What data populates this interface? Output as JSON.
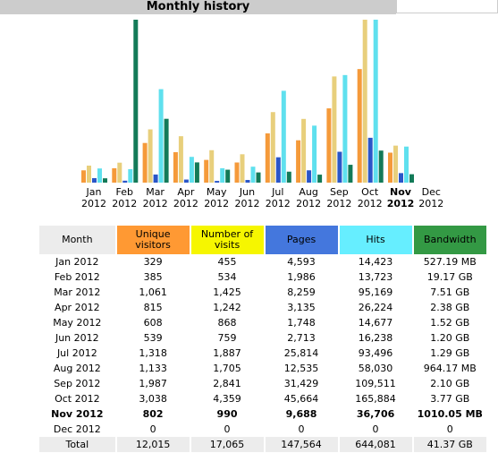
{
  "header": {
    "title": "Monthly history"
  },
  "chart_data": {
    "type": "bar",
    "categories": [
      "Jan 2012",
      "Feb 2012",
      "Mar 2012",
      "Apr 2012",
      "May 2012",
      "Jun 2012",
      "Jul 2012",
      "Aug 2012",
      "Sep 2012",
      "Oct 2012",
      "Nov 2012",
      "Dec 2012"
    ],
    "bold_index": 10,
    "series": [
      {
        "color": "#f59a3a",
        "ylim": [
          0,
          4359
        ],
        "values": [
          329,
          385,
          1061,
          815,
          608,
          539,
          1318,
          1133,
          1987,
          3038,
          802,
          0
        ]
      },
      {
        "color": "#e8cf7c",
        "ylim": [
          0,
          4359
        ],
        "values": [
          455,
          534,
          1425,
          1242,
          868,
          759,
          1887,
          1705,
          2841,
          4359,
          990,
          0
        ]
      },
      {
        "color": "#2a56c8",
        "ylim": [
          0,
          165884
        ],
        "values": [
          4593,
          1986,
          8259,
          3135,
          1748,
          2713,
          25814,
          12535,
          31429,
          45664,
          9688,
          0
        ]
      },
      {
        "color": "#5fe0ee",
        "ylim": [
          0,
          165884
        ],
        "values": [
          14423,
          13723,
          95169,
          26224,
          14677,
          16238,
          93496,
          58030,
          109511,
          165884,
          36706,
          0
        ]
      },
      {
        "color": "#137a58",
        "ylim": [
          0,
          19.17
        ],
        "values": [
          0.51,
          19.17,
          7.51,
          2.38,
          1.52,
          1.2,
          1.29,
          0.94,
          2.1,
          3.77,
          0.99,
          0
        ]
      }
    ]
  },
  "table": {
    "header": [
      "Month",
      "Unique visitors",
      "Number of visits",
      "Pages",
      "Hits",
      "Bandwidth"
    ],
    "header_colors": [
      "#ececec",
      "#ff9933",
      "#f6f600",
      "#4477dd",
      "#66eeff",
      "#339944"
    ],
    "bold_row": 10,
    "rows": [
      [
        "Jan 2012",
        "329",
        "455",
        "4,593",
        "14,423",
        "527.19 MB"
      ],
      [
        "Feb 2012",
        "385",
        "534",
        "1,986",
        "13,723",
        "19.17 GB"
      ],
      [
        "Mar 2012",
        "1,061",
        "1,425",
        "8,259",
        "95,169",
        "7.51 GB"
      ],
      [
        "Apr 2012",
        "815",
        "1,242",
        "3,135",
        "26,224",
        "2.38 GB"
      ],
      [
        "May 2012",
        "608",
        "868",
        "1,748",
        "14,677",
        "1.52 GB"
      ],
      [
        "Jun 2012",
        "539",
        "759",
        "2,713",
        "16,238",
        "1.20 GB"
      ],
      [
        "Jul 2012",
        "1,318",
        "1,887",
        "25,814",
        "93,496",
        "1.29 GB"
      ],
      [
        "Aug 2012",
        "1,133",
        "1,705",
        "12,535",
        "58,030",
        "964.17 MB"
      ],
      [
        "Sep 2012",
        "1,987",
        "2,841",
        "31,429",
        "109,511",
        "2.10 GB"
      ],
      [
        "Oct 2012",
        "3,038",
        "4,359",
        "45,664",
        "165,884",
        "3.77 GB"
      ],
      [
        "Nov 2012",
        "802",
        "990",
        "9,688",
        "36,706",
        "1010.05 MB"
      ],
      [
        "Dec 2012",
        "0",
        "0",
        "0",
        "0",
        "0"
      ]
    ],
    "total": [
      "Total",
      "12,015",
      "17,065",
      "147,564",
      "644,081",
      "41.37 GB"
    ]
  }
}
